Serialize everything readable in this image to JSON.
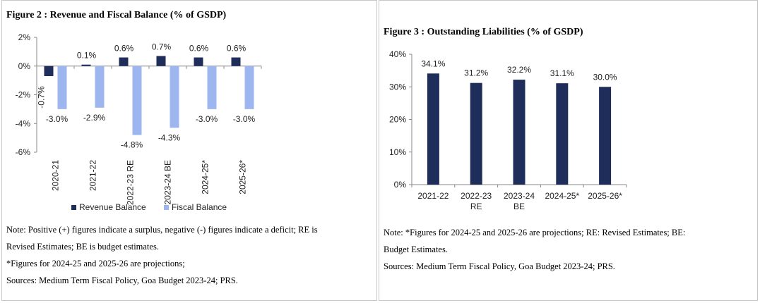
{
  "figure2": {
    "title": "Figure  2 : Revenue and Fiscal Balance (% of GSDP)",
    "notes": [
      "Note: Positive (+) figures indicate a surplus, negative (-) figures indicate a deficit; RE is",
      "Revised Estimates; BE is budget estimates.",
      "*Figures for 2024-25 and 2025-26 are projections;",
      "Sources: Medium Term Fiscal Policy, Goa Budget 2023-24; PRS."
    ]
  },
  "figure3": {
    "title": "Figure  3 : Outstanding Liabilities (% of GSDP)",
    "notes": [
      "Note: *Figures for 2024-25 and 2025-26 are projections; RE: Revised Estimates; BE:",
      "Budget Estimates.",
      "Sources: Medium Term Fiscal Policy, Goa Budget 2023-24; PRS."
    ]
  },
  "colors": {
    "revenue": "#1f2d5a",
    "fiscal": "#9db6ef",
    "liabilities": "#1f2d5a"
  },
  "chart_data": [
    {
      "type": "bar",
      "title": "Figure  2 : Revenue and Fiscal Balance (% of GSDP)",
      "categories": [
        "2020-21",
        "2021-22",
        "2022-23 RE",
        "2023-24 BE",
        "2024-25*",
        "2025-26*"
      ],
      "series": [
        {
          "name": "Revenue Balance",
          "values": [
            -0.7,
            0.1,
            0.6,
            0.7,
            0.6,
            0.6
          ],
          "labels": [
            "-0.7%",
            "0.1%",
            "0.6%",
            "0.7%",
            "0.6%",
            "0.6%"
          ]
        },
        {
          "name": "Fiscal Balance",
          "values": [
            -3.0,
            -2.9,
            -4.8,
            -4.3,
            -3.0,
            -3.0
          ],
          "labels": [
            "-3.0%",
            "-2.9%",
            "-4.8%",
            "-4.3%",
            "-3.0%",
            "-3.0%"
          ]
        }
      ],
      "ylim": [
        -6,
        2
      ],
      "yticks": [
        "2%",
        "0%",
        "-2%",
        "-4%",
        "-6%"
      ],
      "ytick_values": [
        2,
        0,
        -2,
        -4,
        -6
      ],
      "legend": "bottom",
      "grid": false
    },
    {
      "type": "bar",
      "title": "Figure  3 : Outstanding Liabilities (% of GSDP)",
      "categories": [
        [
          "2021-22"
        ],
        [
          "2022-23",
          "RE"
        ],
        [
          "2023-24",
          "BE"
        ],
        [
          "2024-25*"
        ],
        [
          "2025-26*"
        ]
      ],
      "series": [
        {
          "name": "Outstanding Liabilities",
          "values": [
            34.1,
            31.2,
            32.2,
            31.1,
            30.0
          ],
          "labels": [
            "34.1%",
            "31.2%",
            "32.2%",
            "31.1%",
            "30.0%"
          ]
        }
      ],
      "ylim": [
        0,
        40
      ],
      "yticks": [
        "40%",
        "30%",
        "20%",
        "10%",
        "0%"
      ],
      "ytick_values": [
        40,
        30,
        20,
        10,
        0
      ],
      "grid": false
    }
  ]
}
